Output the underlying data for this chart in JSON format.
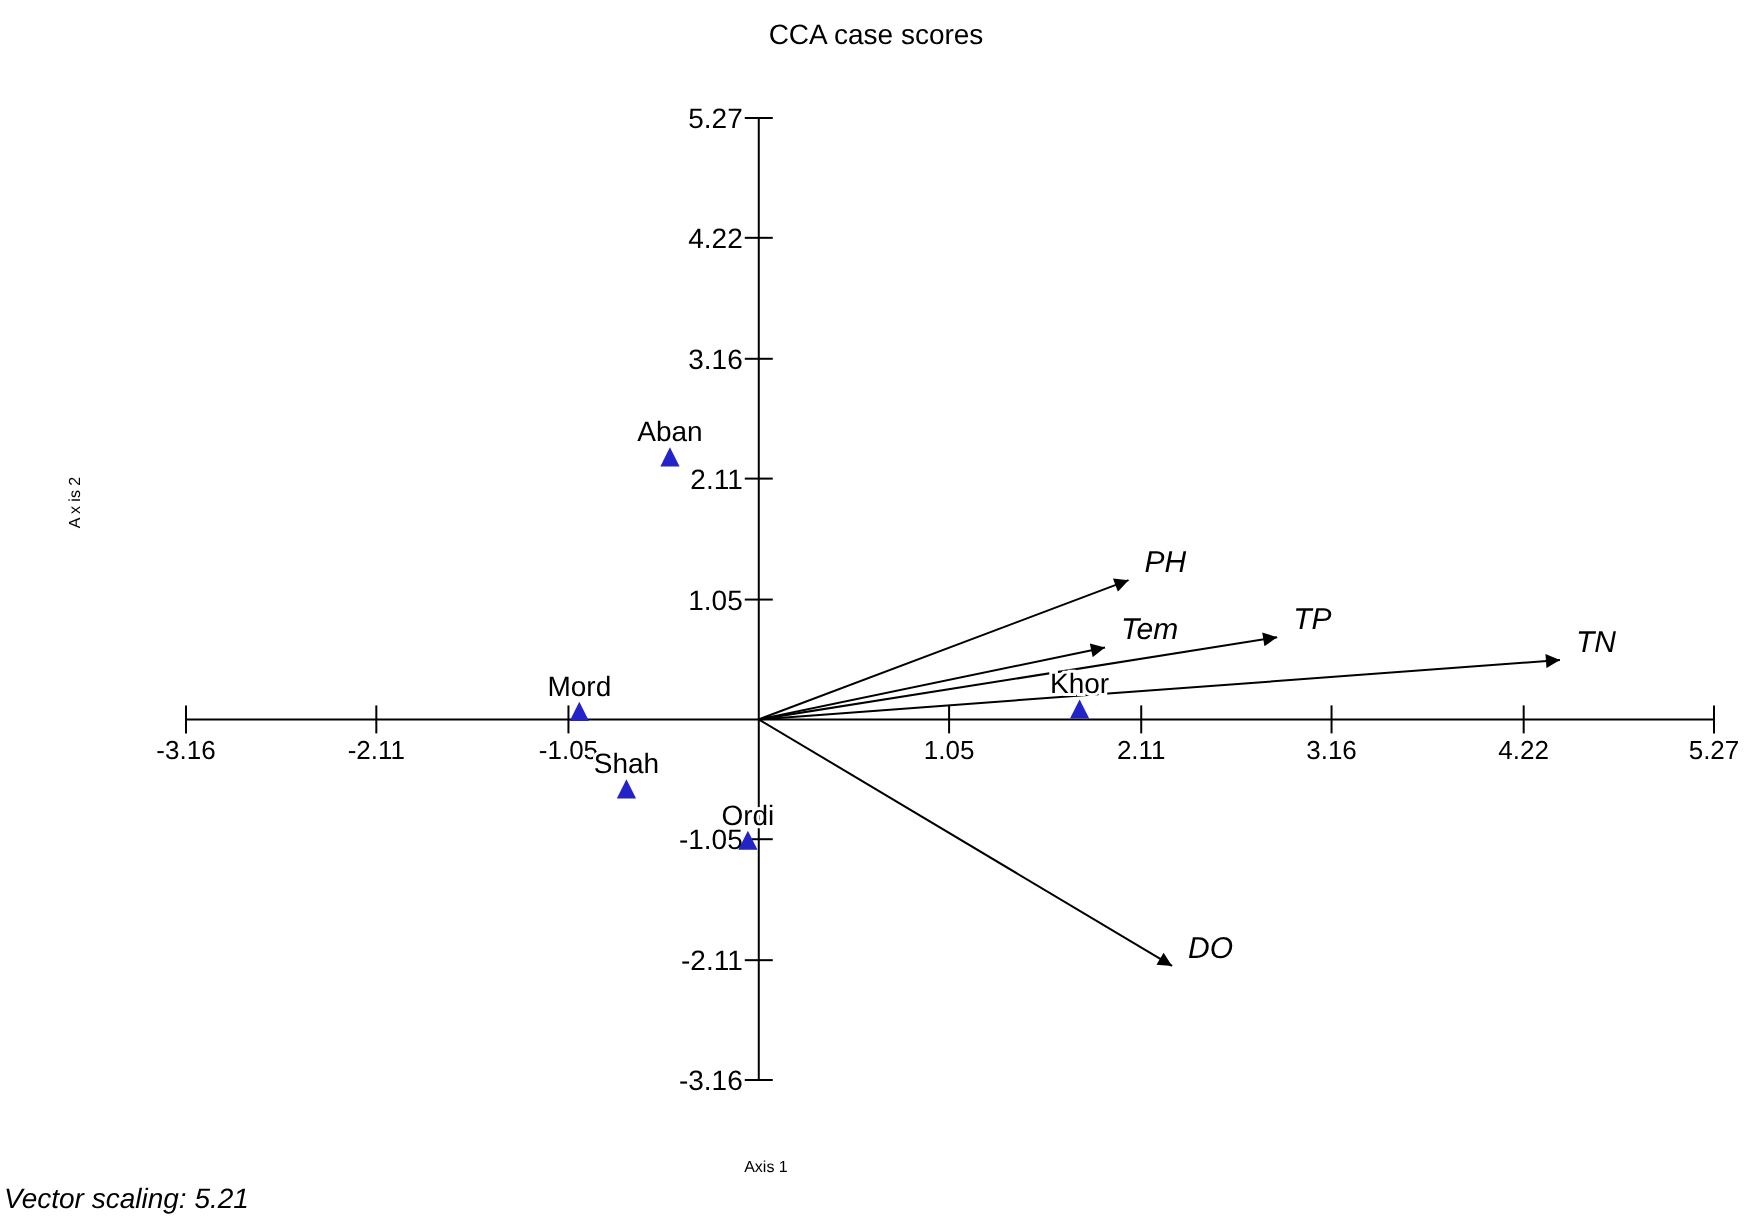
{
  "chart_data": {
    "type": "scatter",
    "title": "CCA case scores",
    "xlabel": "Axis 1",
    "ylabel": "A x is 2",
    "xlim": [
      -3.16,
      5.27
    ],
    "ylim": [
      -3.16,
      5.27
    ],
    "xticks": [
      -3.16,
      -2.11,
      -1.05,
      1.05,
      2.11,
      3.16,
      4.22,
      5.27
    ],
    "yticks": [
      -3.16,
      -2.11,
      -1.05,
      1.05,
      2.11,
      3.16,
      4.22,
      5.27
    ],
    "series": [
      {
        "color": "#2323c8",
        "marker": "triangle",
        "x": [
          -0.49,
          -0.99,
          -0.73,
          -0.06,
          1.77
        ],
        "values": [
          2.28,
          0.05,
          -0.63,
          -1.08,
          0.07
        ]
      },
      {
        "type": "line",
        "name": "PH",
        "color": "#000000",
        "marker": "none",
        "x": [
          0,
          2.04
        ],
        "values": [
          0,
          1.22
        ]
      },
      {
        "type": "line",
        "name": "Tem",
        "color": "#000000",
        "marker": "none",
        "x": [
          0,
          1.91
        ],
        "values": [
          0,
          0.63
        ]
      },
      {
        "type": "line",
        "name": "TP",
        "color": "#000000",
        "marker": "none",
        "x": [
          0,
          2.86
        ],
        "values": [
          0,
          0.72
        ]
      },
      {
        "type": "line",
        "name": "TN",
        "color": "#000000",
        "marker": "none",
        "x": [
          0,
          4.42
        ],
        "values": [
          0,
          0.52
        ]
      },
      {
        "type": "line",
        "name": "DO",
        "color": "#000000",
        "marker": "none",
        "x": [
          0,
          2.28
        ],
        "values": [
          0,
          -2.16
        ]
      }
    ],
    "annotations": [
      {
        "text": "Aban",
        "x": -0.49,
        "y": 2.28
      },
      {
        "text": "Mord",
        "x": -0.99,
        "y": 0.05
      },
      {
        "text": "Shah",
        "x": -0.73,
        "y": -0.63
      },
      {
        "text": "Ordi",
        "x": -0.06,
        "y": -1.08
      },
      {
        "text": "Khor",
        "x": 1.77,
        "y": 0.07
      },
      "Vector scaling: 5.21"
    ]
  }
}
